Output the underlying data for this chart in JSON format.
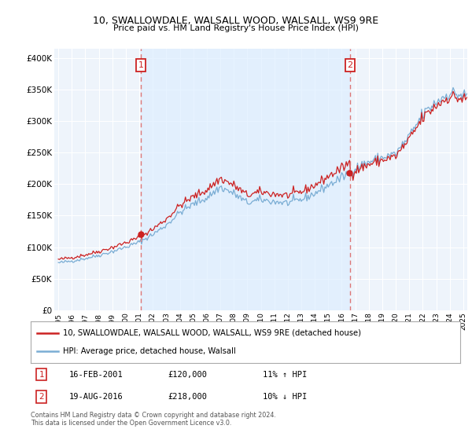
{
  "title_line1": "10, SWALLOWDALE, WALSALL WOOD, WALSALL, WS9 9RE",
  "title_line2": "Price paid vs. HM Land Registry's House Price Index (HPI)",
  "ylabel_ticks": [
    "£0",
    "£50K",
    "£100K",
    "£150K",
    "£200K",
    "£250K",
    "£300K",
    "£350K",
    "£400K"
  ],
  "ytick_vals": [
    0,
    50000,
    100000,
    150000,
    200000,
    250000,
    300000,
    350000,
    400000
  ],
  "ylim": [
    0,
    415000
  ],
  "xlim_start": 1994.7,
  "xlim_end": 2025.3,
  "xtick_years": [
    1995,
    1996,
    1997,
    1998,
    1999,
    2000,
    2001,
    2002,
    2003,
    2004,
    2005,
    2006,
    2007,
    2008,
    2009,
    2010,
    2011,
    2012,
    2013,
    2014,
    2015,
    2016,
    2017,
    2018,
    2019,
    2020,
    2021,
    2022,
    2023,
    2024,
    2025
  ],
  "hpi_color": "#7aadd4",
  "price_color": "#cc2222",
  "annotation_box_color": "#cc2222",
  "vline_color": "#dd7777",
  "shade_color": "#ddeeff",
  "bg_color": "#eef4fb",
  "grid_color": "#ffffff",
  "legend_label_price": "10, SWALLOWDALE, WALSALL WOOD, WALSALL, WS9 9RE (detached house)",
  "legend_label_hpi": "HPI: Average price, detached house, Walsall",
  "annotation1_date": "16-FEB-2001",
  "annotation1_price": "£120,000",
  "annotation1_hpi": "11% ↑ HPI",
  "annotation2_date": "19-AUG-2016",
  "annotation2_price": "£218,000",
  "annotation2_hpi": "10% ↓ HPI",
  "footnote": "Contains HM Land Registry data © Crown copyright and database right 2024.\nThis data is licensed under the Open Government Licence v3.0.",
  "sale1_year": 2001.12,
  "sale1_price": 120000,
  "sale2_year": 2016.62,
  "sale2_price": 218000
}
